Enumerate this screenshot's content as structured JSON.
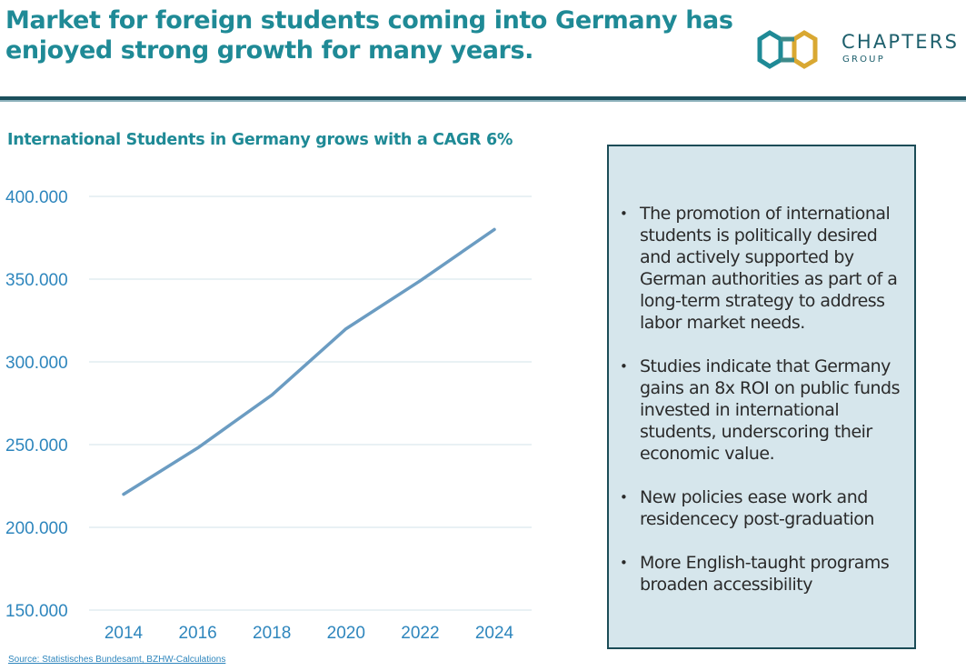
{
  "slide": {
    "title": "Market for foreign students coming into Germany has enjoyed strong growth for many years."
  },
  "logo": {
    "name": "CHAPTERS",
    "subtitle": "GROUP",
    "colors": {
      "teal": "#1f8a96",
      "green": "#3d8a8a",
      "gold": "#d9a832"
    }
  },
  "chart_title": "International Students in Germany grows with a CAGR 6%",
  "chart_data": {
    "type": "line",
    "title": "International Students in Germany grows with a CAGR 6%",
    "x": [
      2014,
      2016,
      2018,
      2020,
      2022,
      2024
    ],
    "x_labels": [
      "2014",
      "2016",
      "2018",
      "2020",
      "2022",
      "2024"
    ],
    "series": [
      {
        "values": [
          220000,
          248000,
          280000,
          320000,
          349000,
          380000
        ],
        "color": "#6b9cc2"
      }
    ],
    "ylim": [
      150000,
      400000
    ],
    "yticks": [
      150000,
      200000,
      250000,
      300000,
      350000,
      400000
    ],
    "ytick_labels": [
      "150.000",
      "200.000",
      "250.000",
      "300.000",
      "350.000",
      "400.000"
    ],
    "grid": true,
    "legend": "none",
    "xlabel": "",
    "ylabel": ""
  },
  "source": "Source: Statistisches Bundesamt, BZHW-Calculations",
  "notes": {
    "bullet_symbol": "•",
    "items": [
      "The promotion of international students is politically desired and actively supported by German authorities as part of a long-term strategy to address labor market needs.",
      "Studies indicate that Germany gains an 8x ROI on public funds invested in international students, underscoring their economic value.",
      "New policies ease work and residencecy post-graduation",
      "More English-taught programs broaden accessibility"
    ]
  }
}
